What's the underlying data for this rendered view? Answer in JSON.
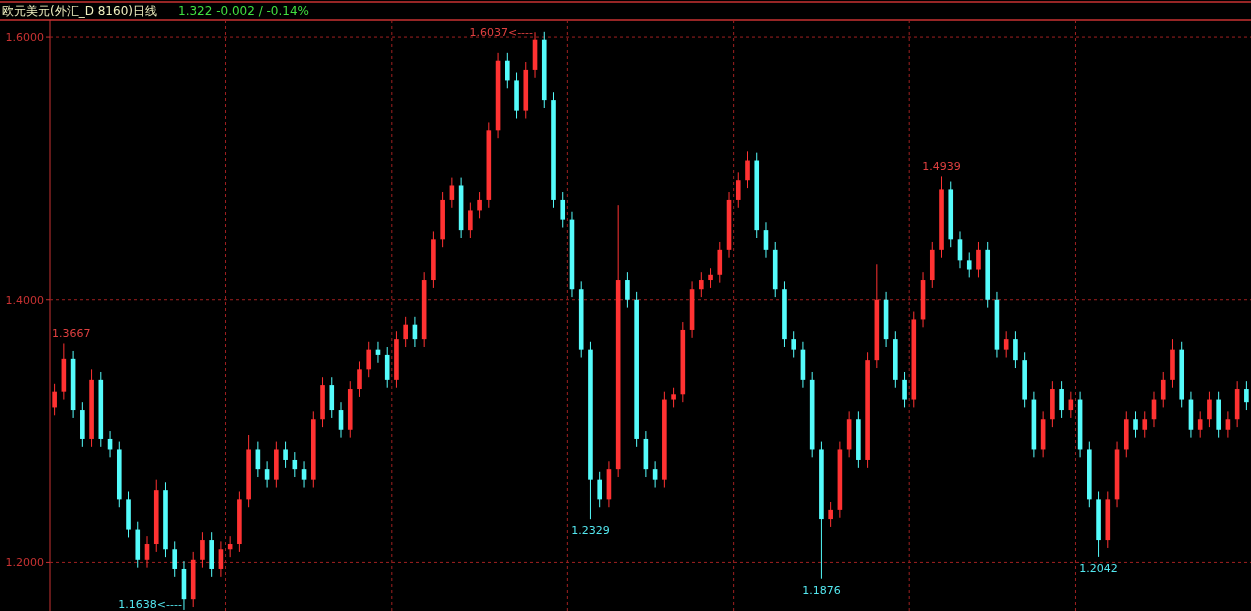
{
  "chart_data": {
    "type": "candlestick",
    "title": "欧元美元(外汇_D 8160)日线",
    "subtitle": "1.322  -0.002 / -0.14%",
    "categories": [
      null,
      null,
      null,
      null,
      null,
      null,
      null,
      null,
      null,
      null,
      null,
      null,
      null,
      null,
      null,
      null,
      null,
      null,
      null,
      null,
      null,
      null,
      null,
      null,
      null,
      null,
      null,
      null,
      null,
      null,
      null,
      null,
      null,
      null,
      null,
      null,
      null,
      null,
      null,
      null,
      null,
      null,
      null,
      null,
      null,
      null,
      null,
      null,
      null,
      null,
      null,
      null,
      null,
      null,
      null,
      null,
      null,
      null,
      null,
      null,
      null,
      null,
      null,
      null,
      null,
      null,
      null,
      null,
      null,
      null,
      null,
      null,
      null,
      null,
      null,
      null,
      null,
      null,
      null,
      null,
      null,
      null,
      null,
      null,
      null,
      null,
      null,
      null,
      null,
      null,
      null,
      null,
      null,
      null,
      null,
      null,
      null,
      null,
      null,
      null,
      null,
      null,
      null,
      null,
      null,
      null,
      null,
      null,
      null,
      null,
      null,
      null,
      null,
      null,
      null,
      null,
      null,
      null,
      null,
      null,
      null,
      null,
      null,
      null,
      null,
      null,
      null,
      null,
      null,
      null
    ],
    "ohlc": [
      [
        1.318,
        1.336,
        1.312,
        1.33
      ],
      [
        1.33,
        1.3667,
        1.324,
        1.355
      ],
      [
        1.355,
        1.361,
        1.31,
        1.316
      ],
      [
        1.316,
        1.322,
        1.288,
        1.294
      ],
      [
        1.294,
        1.347,
        1.288,
        1.339
      ],
      [
        1.339,
        1.345,
        1.288,
        1.294
      ],
      [
        1.294,
        1.3,
        1.28,
        1.286
      ],
      [
        1.286,
        1.292,
        1.242,
        1.248
      ],
      [
        1.248,
        1.254,
        1.219,
        1.225
      ],
      [
        1.225,
        1.231,
        1.196,
        1.202
      ],
      [
        1.202,
        1.22,
        1.196,
        1.214
      ],
      [
        1.214,
        1.263,
        1.208,
        1.255
      ],
      [
        1.255,
        1.261,
        1.204,
        1.21
      ],
      [
        1.21,
        1.216,
        1.189,
        1.195
      ],
      [
        1.195,
        1.201,
        1.1638,
        1.172
      ],
      [
        1.172,
        1.208,
        1.166,
        1.202
      ],
      [
        1.202,
        1.223,
        1.196,
        1.217
      ],
      [
        1.217,
        1.223,
        1.189,
        1.195
      ],
      [
        1.195,
        1.216,
        1.189,
        1.21
      ],
      [
        1.21,
        1.22,
        1.204,
        1.214
      ],
      [
        1.214,
        1.254,
        1.208,
        1.248
      ],
      [
        1.248,
        1.297,
        1.242,
        1.286
      ],
      [
        1.286,
        1.292,
        1.265,
        1.271
      ],
      [
        1.271,
        1.277,
        1.257,
        1.263
      ],
      [
        1.263,
        1.292,
        1.257,
        1.286
      ],
      [
        1.286,
        1.292,
        1.272,
        1.278
      ],
      [
        1.278,
        1.284,
        1.265,
        1.271
      ],
      [
        1.271,
        1.277,
        1.257,
        1.263
      ],
      [
        1.263,
        1.315,
        1.257,
        1.309
      ],
      [
        1.309,
        1.341,
        1.303,
        1.335
      ],
      [
        1.335,
        1.341,
        1.31,
        1.316
      ],
      [
        1.316,
        1.322,
        1.295,
        1.301
      ],
      [
        1.301,
        1.338,
        1.295,
        1.332
      ],
      [
        1.332,
        1.353,
        1.326,
        1.347
      ],
      [
        1.347,
        1.368,
        1.341,
        1.362
      ],
      [
        1.362,
        1.368,
        1.352,
        1.358
      ],
      [
        1.358,
        1.364,
        1.333,
        1.339
      ],
      [
        1.339,
        1.376,
        1.333,
        1.37
      ],
      [
        1.37,
        1.387,
        1.364,
        1.381
      ],
      [
        1.381,
        1.387,
        1.364,
        1.37
      ],
      [
        1.37,
        1.421,
        1.364,
        1.415
      ],
      [
        1.415,
        1.452,
        1.409,
        1.446
      ],
      [
        1.446,
        1.482,
        1.44,
        1.476
      ],
      [
        1.476,
        1.493,
        1.47,
        1.487
      ],
      [
        1.487,
        1.493,
        1.447,
        1.453
      ],
      [
        1.453,
        1.474,
        1.447,
        1.468
      ],
      [
        1.468,
        1.482,
        1.462,
        1.476
      ],
      [
        1.476,
        1.535,
        1.47,
        1.529
      ],
      [
        1.529,
        1.588,
        1.523,
        1.582
      ],
      [
        1.582,
        1.588,
        1.561,
        1.567
      ],
      [
        1.567,
        1.573,
        1.538,
        1.544
      ],
      [
        1.544,
        1.581,
        1.538,
        1.575
      ],
      [
        1.575,
        1.6037,
        1.569,
        1.598
      ],
      [
        1.598,
        1.604,
        1.546,
        1.552
      ],
      [
        1.552,
        1.558,
        1.47,
        1.476
      ],
      [
        1.476,
        1.482,
        1.455,
        1.461
      ],
      [
        1.461,
        1.467,
        1.402,
        1.408
      ],
      [
        1.408,
        1.414,
        1.356,
        1.362
      ],
      [
        1.362,
        1.368,
        1.2329,
        1.263
      ],
      [
        1.263,
        1.269,
        1.242,
        1.248
      ],
      [
        1.248,
        1.277,
        1.242,
        1.271
      ],
      [
        1.271,
        1.472,
        1.265,
        1.415
      ],
      [
        1.415,
        1.421,
        1.394,
        1.4
      ],
      [
        1.4,
        1.406,
        1.288,
        1.294
      ],
      [
        1.294,
        1.3,
        1.265,
        1.271
      ],
      [
        1.271,
        1.277,
        1.257,
        1.263
      ],
      [
        1.263,
        1.33,
        1.257,
        1.324
      ],
      [
        1.324,
        1.333,
        1.318,
        1.328
      ],
      [
        1.328,
        1.383,
        1.322,
        1.377
      ],
      [
        1.377,
        1.414,
        1.371,
        1.408
      ],
      [
        1.408,
        1.421,
        1.402,
        1.415
      ],
      [
        1.415,
        1.424,
        1.409,
        1.419
      ],
      [
        1.419,
        1.444,
        1.413,
        1.438
      ],
      [
        1.438,
        1.482,
        1.432,
        1.476
      ],
      [
        1.476,
        1.497,
        1.47,
        1.491
      ],
      [
        1.491,
        1.513,
        1.485,
        1.506
      ],
      [
        1.506,
        1.512,
        1.447,
        1.453
      ],
      [
        1.453,
        1.459,
        1.432,
        1.438
      ],
      [
        1.438,
        1.444,
        1.402,
        1.408
      ],
      [
        1.408,
        1.414,
        1.364,
        1.37
      ],
      [
        1.37,
        1.376,
        1.356,
        1.362
      ],
      [
        1.362,
        1.368,
        1.333,
        1.339
      ],
      [
        1.339,
        1.345,
        1.28,
        1.286
      ],
      [
        1.286,
        1.292,
        1.1876,
        1.233
      ],
      [
        1.233,
        1.246,
        1.227,
        1.24
      ],
      [
        1.24,
        1.292,
        1.234,
        1.286
      ],
      [
        1.286,
        1.315,
        1.28,
        1.309
      ],
      [
        1.309,
        1.315,
        1.272,
        1.278
      ],
      [
        1.278,
        1.36,
        1.272,
        1.354
      ],
      [
        1.354,
        1.427,
        1.348,
        1.4
      ],
      [
        1.4,
        1.406,
        1.364,
        1.37
      ],
      [
        1.37,
        1.376,
        1.333,
        1.339
      ],
      [
        1.339,
        1.345,
        1.318,
        1.324
      ],
      [
        1.324,
        1.391,
        1.318,
        1.385
      ],
      [
        1.385,
        1.421,
        1.379,
        1.415
      ],
      [
        1.415,
        1.444,
        1.409,
        1.438
      ],
      [
        1.438,
        1.4939,
        1.432,
        1.484
      ],
      [
        1.484,
        1.49,
        1.44,
        1.446
      ],
      [
        1.446,
        1.452,
        1.424,
        1.43
      ],
      [
        1.43,
        1.436,
        1.417,
        1.423
      ],
      [
        1.423,
        1.444,
        1.417,
        1.438
      ],
      [
        1.438,
        1.444,
        1.394,
        1.4
      ],
      [
        1.4,
        1.406,
        1.356,
        1.362
      ],
      [
        1.362,
        1.376,
        1.356,
        1.37
      ],
      [
        1.37,
        1.376,
        1.348,
        1.354
      ],
      [
        1.354,
        1.36,
        1.318,
        1.324
      ],
      [
        1.324,
        1.33,
        1.28,
        1.286
      ],
      [
        1.286,
        1.315,
        1.28,
        1.309
      ],
      [
        1.309,
        1.338,
        1.303,
        1.332
      ],
      [
        1.332,
        1.338,
        1.31,
        1.316
      ],
      [
        1.316,
        1.33,
        1.31,
        1.324
      ],
      [
        1.324,
        1.33,
        1.28,
        1.286
      ],
      [
        1.286,
        1.292,
        1.242,
        1.248
      ],
      [
        1.248,
        1.254,
        1.2042,
        1.217
      ],
      [
        1.217,
        1.254,
        1.211,
        1.248
      ],
      [
        1.248,
        1.292,
        1.242,
        1.286
      ],
      [
        1.286,
        1.315,
        1.28,
        1.309
      ],
      [
        1.309,
        1.315,
        1.295,
        1.301
      ],
      [
        1.301,
        1.315,
        1.295,
        1.309
      ],
      [
        1.309,
        1.33,
        1.303,
        1.324
      ],
      [
        1.324,
        1.345,
        1.318,
        1.339
      ],
      [
        1.339,
        1.37,
        1.333,
        1.362
      ],
      [
        1.362,
        1.368,
        1.318,
        1.324
      ],
      [
        1.324,
        1.33,
        1.295,
        1.301
      ],
      [
        1.301,
        1.315,
        1.295,
        1.309
      ],
      [
        1.309,
        1.33,
        1.303,
        1.324
      ],
      [
        1.324,
        1.33,
        1.295,
        1.301
      ],
      [
        1.301,
        1.315,
        1.295,
        1.309
      ],
      [
        1.309,
        1.338,
        1.303,
        1.332
      ],
      [
        1.332,
        1.338,
        1.316,
        1.322
      ]
    ],
    "ylim": [
      1.163,
      1.613
    ],
    "yticks": [
      {
        "value": 1.2,
        "label": "1.2000"
      },
      {
        "value": 1.4,
        "label": "1.4000"
      },
      {
        "value": 1.6,
        "label": "1.6000"
      }
    ],
    "grid": "y",
    "annotations": [
      "1.3667",
      "1.1638<----",
      "1.6037<----",
      "1.2329",
      "1.1876",
      "1.4939",
      "1.2042"
    ]
  }
}
